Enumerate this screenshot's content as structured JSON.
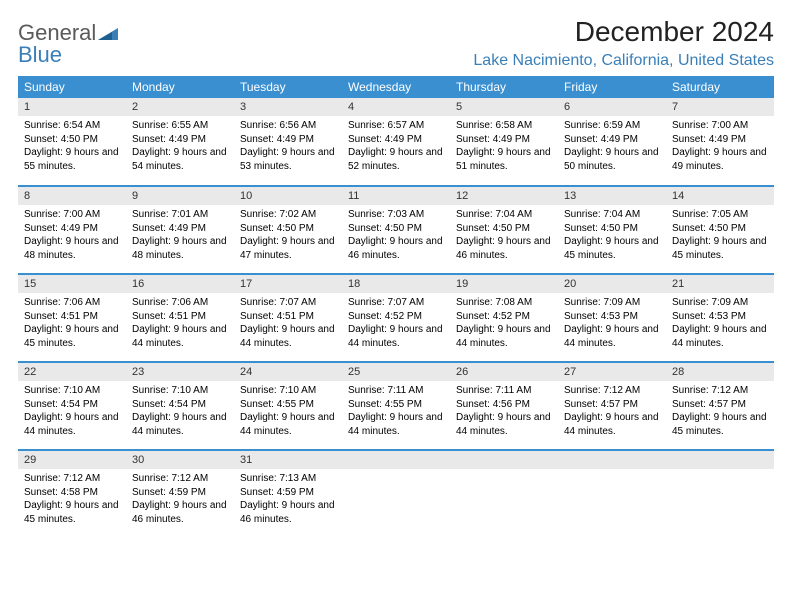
{
  "logo": {
    "general": "General",
    "blue": "Blue"
  },
  "title": "December 2024",
  "location": "Lake Nacimiento, California, United States",
  "colors": {
    "header_bg": "#3a8fd0",
    "header_text": "#ffffff",
    "daynum_bg": "#e9e9e9",
    "row_border": "#3a8fd0",
    "location_color": "#3a7fb8",
    "logo_gray": "#5a5a5a",
    "logo_blue": "#3a7fb8",
    "page_bg": "#ffffff"
  },
  "typography": {
    "title_fontsize": 28,
    "location_fontsize": 16,
    "dayheader_fontsize": 12,
    "daynum_fontsize": 11,
    "body_fontsize": 10
  },
  "day_headers": [
    "Sunday",
    "Monday",
    "Tuesday",
    "Wednesday",
    "Thursday",
    "Friday",
    "Saturday"
  ],
  "weeks": [
    [
      {
        "n": "1",
        "sunrise": "Sunrise: 6:54 AM",
        "sunset": "Sunset: 4:50 PM",
        "daylight": "Daylight: 9 hours and 55 minutes."
      },
      {
        "n": "2",
        "sunrise": "Sunrise: 6:55 AM",
        "sunset": "Sunset: 4:49 PM",
        "daylight": "Daylight: 9 hours and 54 minutes."
      },
      {
        "n": "3",
        "sunrise": "Sunrise: 6:56 AM",
        "sunset": "Sunset: 4:49 PM",
        "daylight": "Daylight: 9 hours and 53 minutes."
      },
      {
        "n": "4",
        "sunrise": "Sunrise: 6:57 AM",
        "sunset": "Sunset: 4:49 PM",
        "daylight": "Daylight: 9 hours and 52 minutes."
      },
      {
        "n": "5",
        "sunrise": "Sunrise: 6:58 AM",
        "sunset": "Sunset: 4:49 PM",
        "daylight": "Daylight: 9 hours and 51 minutes."
      },
      {
        "n": "6",
        "sunrise": "Sunrise: 6:59 AM",
        "sunset": "Sunset: 4:49 PM",
        "daylight": "Daylight: 9 hours and 50 minutes."
      },
      {
        "n": "7",
        "sunrise": "Sunrise: 7:00 AM",
        "sunset": "Sunset: 4:49 PM",
        "daylight": "Daylight: 9 hours and 49 minutes."
      }
    ],
    [
      {
        "n": "8",
        "sunrise": "Sunrise: 7:00 AM",
        "sunset": "Sunset: 4:49 PM",
        "daylight": "Daylight: 9 hours and 48 minutes."
      },
      {
        "n": "9",
        "sunrise": "Sunrise: 7:01 AM",
        "sunset": "Sunset: 4:49 PM",
        "daylight": "Daylight: 9 hours and 48 minutes."
      },
      {
        "n": "10",
        "sunrise": "Sunrise: 7:02 AM",
        "sunset": "Sunset: 4:50 PM",
        "daylight": "Daylight: 9 hours and 47 minutes."
      },
      {
        "n": "11",
        "sunrise": "Sunrise: 7:03 AM",
        "sunset": "Sunset: 4:50 PM",
        "daylight": "Daylight: 9 hours and 46 minutes."
      },
      {
        "n": "12",
        "sunrise": "Sunrise: 7:04 AM",
        "sunset": "Sunset: 4:50 PM",
        "daylight": "Daylight: 9 hours and 46 minutes."
      },
      {
        "n": "13",
        "sunrise": "Sunrise: 7:04 AM",
        "sunset": "Sunset: 4:50 PM",
        "daylight": "Daylight: 9 hours and 45 minutes."
      },
      {
        "n": "14",
        "sunrise": "Sunrise: 7:05 AM",
        "sunset": "Sunset: 4:50 PM",
        "daylight": "Daylight: 9 hours and 45 minutes."
      }
    ],
    [
      {
        "n": "15",
        "sunrise": "Sunrise: 7:06 AM",
        "sunset": "Sunset: 4:51 PM",
        "daylight": "Daylight: 9 hours and 45 minutes."
      },
      {
        "n": "16",
        "sunrise": "Sunrise: 7:06 AM",
        "sunset": "Sunset: 4:51 PM",
        "daylight": "Daylight: 9 hours and 44 minutes."
      },
      {
        "n": "17",
        "sunrise": "Sunrise: 7:07 AM",
        "sunset": "Sunset: 4:51 PM",
        "daylight": "Daylight: 9 hours and 44 minutes."
      },
      {
        "n": "18",
        "sunrise": "Sunrise: 7:07 AM",
        "sunset": "Sunset: 4:52 PM",
        "daylight": "Daylight: 9 hours and 44 minutes."
      },
      {
        "n": "19",
        "sunrise": "Sunrise: 7:08 AM",
        "sunset": "Sunset: 4:52 PM",
        "daylight": "Daylight: 9 hours and 44 minutes."
      },
      {
        "n": "20",
        "sunrise": "Sunrise: 7:09 AM",
        "sunset": "Sunset: 4:53 PM",
        "daylight": "Daylight: 9 hours and 44 minutes."
      },
      {
        "n": "21",
        "sunrise": "Sunrise: 7:09 AM",
        "sunset": "Sunset: 4:53 PM",
        "daylight": "Daylight: 9 hours and 44 minutes."
      }
    ],
    [
      {
        "n": "22",
        "sunrise": "Sunrise: 7:10 AM",
        "sunset": "Sunset: 4:54 PM",
        "daylight": "Daylight: 9 hours and 44 minutes."
      },
      {
        "n": "23",
        "sunrise": "Sunrise: 7:10 AM",
        "sunset": "Sunset: 4:54 PM",
        "daylight": "Daylight: 9 hours and 44 minutes."
      },
      {
        "n": "24",
        "sunrise": "Sunrise: 7:10 AM",
        "sunset": "Sunset: 4:55 PM",
        "daylight": "Daylight: 9 hours and 44 minutes."
      },
      {
        "n": "25",
        "sunrise": "Sunrise: 7:11 AM",
        "sunset": "Sunset: 4:55 PM",
        "daylight": "Daylight: 9 hours and 44 minutes."
      },
      {
        "n": "26",
        "sunrise": "Sunrise: 7:11 AM",
        "sunset": "Sunset: 4:56 PM",
        "daylight": "Daylight: 9 hours and 44 minutes."
      },
      {
        "n": "27",
        "sunrise": "Sunrise: 7:12 AM",
        "sunset": "Sunset: 4:57 PM",
        "daylight": "Daylight: 9 hours and 44 minutes."
      },
      {
        "n": "28",
        "sunrise": "Sunrise: 7:12 AM",
        "sunset": "Sunset: 4:57 PM",
        "daylight": "Daylight: 9 hours and 45 minutes."
      }
    ],
    [
      {
        "n": "29",
        "sunrise": "Sunrise: 7:12 AM",
        "sunset": "Sunset: 4:58 PM",
        "daylight": "Daylight: 9 hours and 45 minutes."
      },
      {
        "n": "30",
        "sunrise": "Sunrise: 7:12 AM",
        "sunset": "Sunset: 4:59 PM",
        "daylight": "Daylight: 9 hours and 46 minutes."
      },
      {
        "n": "31",
        "sunrise": "Sunrise: 7:13 AM",
        "sunset": "Sunset: 4:59 PM",
        "daylight": "Daylight: 9 hours and 46 minutes."
      },
      {
        "n": "",
        "sunrise": "",
        "sunset": "",
        "daylight": ""
      },
      {
        "n": "",
        "sunrise": "",
        "sunset": "",
        "daylight": ""
      },
      {
        "n": "",
        "sunrise": "",
        "sunset": "",
        "daylight": ""
      },
      {
        "n": "",
        "sunrise": "",
        "sunset": "",
        "daylight": ""
      }
    ]
  ]
}
